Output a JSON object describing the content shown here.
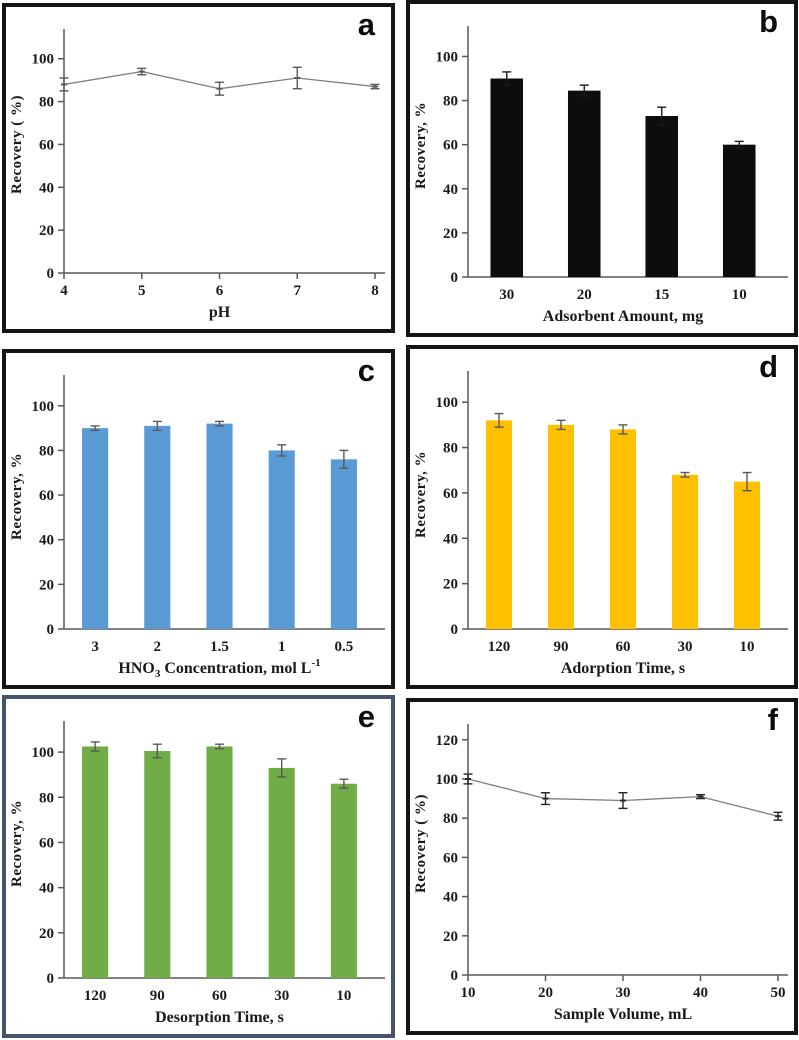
{
  "figure": {
    "background": "#ffffff",
    "default_border_color": "#141414",
    "axis_color": "#595959",
    "text_color": "#1a1a1a"
  },
  "chart_data": [
    {
      "panel": "a",
      "letter": "a",
      "type": "line",
      "color": "#7f7f7f",
      "error_color": "#595959",
      "border_color": "#141414",
      "x": [
        4,
        5,
        6,
        7,
        8
      ],
      "values": [
        88,
        94,
        86,
        91,
        87
      ],
      "errors": [
        3,
        1.5,
        3,
        5,
        1
      ],
      "xlabel": "pH",
      "xlabel_parts": [
        {
          "t": "pH"
        }
      ],
      "ylabel": "Recovery ( %)",
      "yticks": [
        0,
        20,
        40,
        60,
        80,
        100
      ],
      "ylim": [
        0,
        112
      ],
      "grid": false,
      "legend": false
    },
    {
      "panel": "b",
      "letter": "b",
      "type": "bar",
      "color": "#0d0d0d",
      "error_color": "#1a1a1a",
      "border_color": "#141414",
      "categories": [
        "30",
        "20",
        "15",
        "10"
      ],
      "values": [
        90,
        84.5,
        73,
        60
      ],
      "errors": [
        3,
        2.5,
        4,
        1.5
      ],
      "xlabel": "Adsorbent Amount, mg",
      "xlabel_parts": [
        {
          "t": "Adsorbent Amount, mg"
        }
      ],
      "ylabel": "Recovery, %",
      "yticks": [
        0,
        20,
        40,
        60,
        80,
        100
      ],
      "ylim": [
        0,
        112
      ],
      "grid": false,
      "legend": false
    },
    {
      "panel": "c",
      "letter": "c",
      "type": "bar",
      "color": "#5b9bd5",
      "error_color": "#595959",
      "border_color": "#141414",
      "categories": [
        "3",
        "2",
        "1.5",
        "1",
        "0.5"
      ],
      "values": [
        90,
        91,
        92,
        80,
        76
      ],
      "errors": [
        1,
        2,
        1,
        2.5,
        4
      ],
      "xlabel": "HNO3 Concentration, mol L-1",
      "xlabel_parts": [
        {
          "t": "HNO"
        },
        {
          "t": "3",
          "sub": true
        },
        {
          "t": " Concentration,  mol L"
        },
        {
          "t": "-1",
          "sup": true
        }
      ],
      "ylabel": "Recovery, %",
      "yticks": [
        0,
        20,
        40,
        60,
        80,
        100
      ],
      "ylim": [
        0,
        112
      ],
      "grid": false,
      "legend": false
    },
    {
      "panel": "d",
      "letter": "d",
      "type": "bar",
      "color": "#ffc000",
      "error_color": "#595959",
      "border_color": "#141414",
      "categories": [
        "120",
        "90",
        "60",
        "30",
        "10"
      ],
      "values": [
        92,
        90,
        88,
        68,
        65
      ],
      "errors": [
        3,
        2,
        2,
        1,
        4
      ],
      "xlabel": "Adorption  Time, s",
      "xlabel_parts": [
        {
          "t": "Adorption  Time, s"
        }
      ],
      "ylabel": "Recovery, %",
      "yticks": [
        0,
        20,
        40,
        60,
        80,
        100
      ],
      "ylim": [
        0,
        112
      ],
      "grid": false,
      "legend": false
    },
    {
      "panel": "e",
      "letter": "e",
      "type": "bar",
      "color": "#70ad47",
      "error_color": "#595959",
      "border_color": "#44546a",
      "categories": [
        "120",
        "90",
        "60",
        "30",
        "10"
      ],
      "values": [
        102.5,
        100.5,
        102.5,
        93,
        86
      ],
      "errors": [
        2,
        3,
        1,
        4,
        2
      ],
      "xlabel": "Desorption Time, s",
      "xlabel_parts": [
        {
          "t": "Desorption Time, s"
        }
      ],
      "ylabel": "Recovery, %",
      "yticks": [
        0,
        20,
        40,
        60,
        80,
        100
      ],
      "ylim": [
        0,
        112
      ],
      "grid": false,
      "legend": false
    },
    {
      "panel": "f",
      "letter": "f",
      "type": "line",
      "color": "#7f7f7f",
      "error_color": "#262626",
      "border_color": "#141414",
      "x": [
        10,
        20,
        30,
        40,
        50
      ],
      "values": [
        100,
        90,
        89,
        91,
        81
      ],
      "errors": [
        2.5,
        3,
        4,
        1,
        2
      ],
      "xlabel": "Sample Volume, mL",
      "xlabel_parts": [
        {
          "t": "Sample Volume, mL"
        }
      ],
      "ylabel": "Recovery ( %)",
      "yticks": [
        0,
        20,
        40,
        60,
        80,
        100,
        120
      ],
      "ylim": [
        0,
        126
      ],
      "grid": false,
      "legend": false
    }
  ]
}
